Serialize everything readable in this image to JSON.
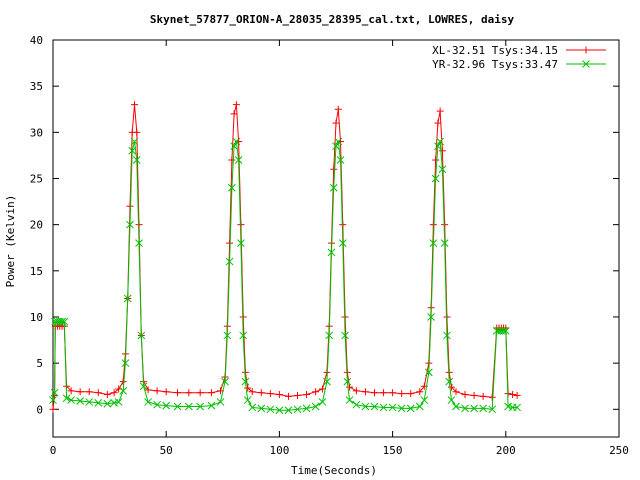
{
  "chart_data": {
    "type": "line",
    "title": "Skynet_57877_ORION-A_28035_28395_cal.txt, LOWRES, daisy",
    "xlabel": "Time(Seconds)",
    "ylabel": "Power (Kelvin)",
    "xlim": [
      0,
      250
    ],
    "ylim": [
      -3,
      40
    ],
    "xticks": [
      0,
      50,
      100,
      150,
      200,
      250
    ],
    "yticks": [
      0,
      5,
      10,
      15,
      20,
      25,
      30,
      35,
      40
    ],
    "grid": false,
    "legend_position": "top-right",
    "series": [
      {
        "name": "XL-32.51 Tsys:34.15",
        "color": "#ff0000",
        "marker": "plus",
        "points": [
          [
            0,
            0
          ],
          [
            0.7,
            1.5
          ],
          [
            1,
            9
          ],
          [
            2,
            9
          ],
          [
            3,
            9
          ],
          [
            4,
            9
          ],
          [
            5,
            9
          ],
          [
            6,
            2.5
          ],
          [
            8,
            2
          ],
          [
            12,
            1.9
          ],
          [
            16,
            1.9
          ],
          [
            20,
            1.8
          ],
          [
            24,
            1.6
          ],
          [
            27,
            1.8
          ],
          [
            29,
            2.2
          ],
          [
            31,
            3
          ],
          [
            32,
            6
          ],
          [
            33,
            12
          ],
          [
            34,
            22
          ],
          [
            35,
            30
          ],
          [
            36,
            33
          ],
          [
            37,
            30
          ],
          [
            38,
            20
          ],
          [
            39,
            8
          ],
          [
            40,
            3
          ],
          [
            42,
            2.1
          ],
          [
            46,
            2
          ],
          [
            50,
            1.9
          ],
          [
            55,
            1.8
          ],
          [
            60,
            1.8
          ],
          [
            65,
            1.8
          ],
          [
            70,
            1.8
          ],
          [
            74,
            2
          ],
          [
            76,
            3.5
          ],
          [
            77,
            9
          ],
          [
            78,
            18
          ],
          [
            79,
            27
          ],
          [
            80,
            32
          ],
          [
            81,
            33
          ],
          [
            82,
            29
          ],
          [
            83,
            20
          ],
          [
            84,
            10
          ],
          [
            85,
            4
          ],
          [
            86,
            2.3
          ],
          [
            88,
            1.9
          ],
          [
            92,
            1.8
          ],
          [
            96,
            1.7
          ],
          [
            100,
            1.6
          ],
          [
            104,
            1.4
          ],
          [
            108,
            1.5
          ],
          [
            112,
            1.6
          ],
          [
            116,
            1.9
          ],
          [
            119,
            2.2
          ],
          [
            121,
            4
          ],
          [
            122,
            9
          ],
          [
            123,
            18
          ],
          [
            124,
            26
          ],
          [
            125,
            31
          ],
          [
            126,
            32.5
          ],
          [
            127,
            29
          ],
          [
            128,
            20
          ],
          [
            129,
            10
          ],
          [
            130,
            4
          ],
          [
            131,
            2.4
          ],
          [
            134,
            2
          ],
          [
            138,
            1.9
          ],
          [
            142,
            1.8
          ],
          [
            146,
            1.8
          ],
          [
            150,
            1.8
          ],
          [
            154,
            1.7
          ],
          [
            158,
            1.7
          ],
          [
            162,
            1.9
          ],
          [
            164,
            2.5
          ],
          [
            166,
            5
          ],
          [
            167,
            11
          ],
          [
            168,
            20
          ],
          [
            169,
            27
          ],
          [
            170,
            31
          ],
          [
            171,
            32.3
          ],
          [
            172,
            28
          ],
          [
            173,
            20
          ],
          [
            174,
            10
          ],
          [
            175,
            4
          ],
          [
            176,
            2.4
          ],
          [
            178,
            1.9
          ],
          [
            182,
            1.6
          ],
          [
            186,
            1.5
          ],
          [
            190,
            1.4
          ],
          [
            194,
            1.3
          ],
          [
            196,
            8.8
          ],
          [
            197,
            8.8
          ],
          [
            198,
            8.8
          ],
          [
            199,
            8.8
          ],
          [
            200,
            8.8
          ],
          [
            201,
            1.7
          ],
          [
            203,
            1.6
          ],
          [
            205,
            1.5
          ]
        ]
      },
      {
        "name": "YR-32.96 Tsys:33.47",
        "color": "#00c000",
        "marker": "x",
        "points": [
          [
            0,
            1
          ],
          [
            0.7,
            1.8
          ],
          [
            1,
            9.5
          ],
          [
            2,
            9.5
          ],
          [
            3,
            9.5
          ],
          [
            4,
            9.5
          ],
          [
            5,
            9.5
          ],
          [
            6,
            1.2
          ],
          [
            8,
            1
          ],
          [
            12,
            0.9
          ],
          [
            16,
            0.8
          ],
          [
            20,
            0.7
          ],
          [
            24,
            0.6
          ],
          [
            27,
            0.7
          ],
          [
            29,
            0.8
          ],
          [
            31,
            2
          ],
          [
            32,
            5
          ],
          [
            33,
            12
          ],
          [
            34,
            20
          ],
          [
            35,
            28
          ],
          [
            36,
            29
          ],
          [
            37,
            27
          ],
          [
            38,
            18
          ],
          [
            39,
            8
          ],
          [
            40,
            2.5
          ],
          [
            42,
            0.8
          ],
          [
            46,
            0.5
          ],
          [
            50,
            0.4
          ],
          [
            55,
            0.3
          ],
          [
            60,
            0.3
          ],
          [
            65,
            0.3
          ],
          [
            70,
            0.4
          ],
          [
            74,
            0.8
          ],
          [
            76,
            3
          ],
          [
            77,
            8
          ],
          [
            78,
            16
          ],
          [
            79,
            24
          ],
          [
            80,
            28.5
          ],
          [
            81,
            29
          ],
          [
            82,
            27
          ],
          [
            83,
            18
          ],
          [
            84,
            8
          ],
          [
            85,
            3
          ],
          [
            86,
            1
          ],
          [
            88,
            0.2
          ],
          [
            92,
            0.1
          ],
          [
            96,
            0
          ],
          [
            100,
            -0.1
          ],
          [
            104,
            -0.1
          ],
          [
            108,
            0
          ],
          [
            112,
            0.1
          ],
          [
            116,
            0.3
          ],
          [
            119,
            0.8
          ],
          [
            121,
            3
          ],
          [
            122,
            8
          ],
          [
            123,
            17
          ],
          [
            124,
            24
          ],
          [
            125,
            28.5
          ],
          [
            126,
            29
          ],
          [
            127,
            27
          ],
          [
            128,
            18
          ],
          [
            129,
            8
          ],
          [
            130,
            3
          ],
          [
            131,
            1
          ],
          [
            134,
            0.5
          ],
          [
            138,
            0.3
          ],
          [
            142,
            0.3
          ],
          [
            146,
            0.2
          ],
          [
            150,
            0.2
          ],
          [
            154,
            0.1
          ],
          [
            158,
            0.1
          ],
          [
            162,
            0.3
          ],
          [
            164,
            1
          ],
          [
            166,
            4
          ],
          [
            167,
            10
          ],
          [
            168,
            18
          ],
          [
            169,
            25
          ],
          [
            170,
            28.5
          ],
          [
            171,
            29
          ],
          [
            172,
            26
          ],
          [
            173,
            18
          ],
          [
            174,
            8
          ],
          [
            175,
            3
          ],
          [
            176,
            1
          ],
          [
            178,
            0.3
          ],
          [
            182,
            0.1
          ],
          [
            186,
            0.1
          ],
          [
            190,
            0.1
          ],
          [
            194,
            0
          ],
          [
            196,
            8.5
          ],
          [
            197,
            8.5
          ],
          [
            198,
            8.5
          ],
          [
            199,
            8.5
          ],
          [
            200,
            8.5
          ],
          [
            201,
            0.3
          ],
          [
            203,
            0.2
          ],
          [
            205,
            0.2
          ]
        ]
      }
    ]
  }
}
